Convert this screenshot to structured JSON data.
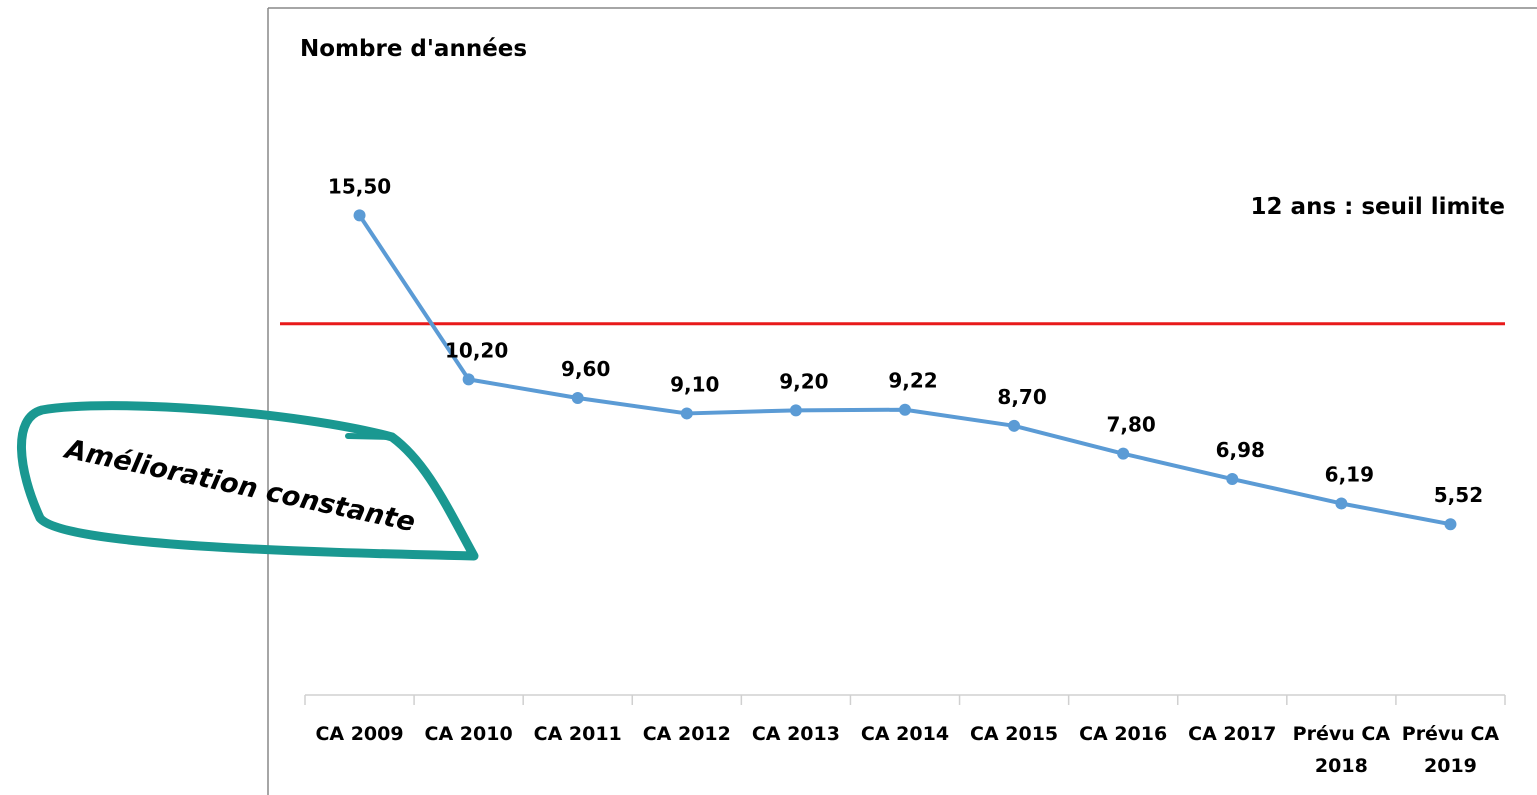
{
  "chart_data": {
    "type": "line",
    "title": "Nombre d'années",
    "categories": [
      "CA 2009",
      "CA 2010",
      "CA 2011",
      "CA 2012",
      "CA 2013",
      "CA 2014",
      "CA 2015",
      "CA 2016",
      "CA 2017",
      "Prévu CA 2018",
      "Prévu CA 2019"
    ],
    "values": [
      15.5,
      10.2,
      9.6,
      9.1,
      9.2,
      9.22,
      8.7,
      7.8,
      6.98,
      6.19,
      5.52
    ],
    "value_labels": [
      "15,50",
      "10,20",
      "9,60",
      "9,10",
      "9,20",
      "9,22",
      "8,70",
      "7,80",
      "6,98",
      "6,19",
      "5,52"
    ],
    "color": "#5b9bd5",
    "ylim": [
      0,
      22
    ],
    "threshold": {
      "value": 12,
      "label": "12 ans : seuil limite",
      "color": "#e8191a"
    },
    "annotation": "Amélioration constante"
  }
}
